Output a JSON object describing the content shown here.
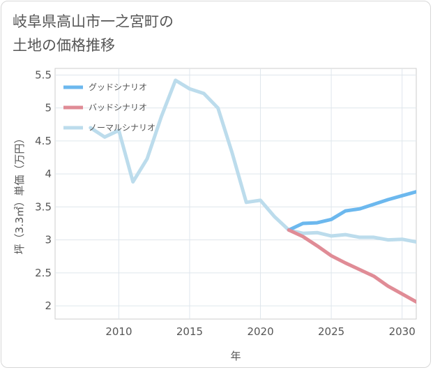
{
  "title": "岐阜県高山市一之宮町の\n土地の価格推移",
  "chart_data": {
    "type": "line",
    "title": "岐阜県高山市一之宮町の土地の価格推移",
    "xlabel": "年",
    "ylabel": "坪（3.3㎡）単価（万円）",
    "xlim": [
      2005.5,
      2031
    ],
    "ylim": [
      1.8,
      5.6
    ],
    "xticks": [
      2010,
      2015,
      2020,
      2025,
      2030
    ],
    "yticks": [
      2,
      2.5,
      3,
      3.5,
      4,
      4.5,
      5,
      5.5
    ],
    "ytick_labels": [
      "2",
      "2.5",
      "3",
      "3.5",
      "4",
      "4.5",
      "5",
      "5.5"
    ],
    "grid": true,
    "legend_position": "top-left",
    "series": [
      {
        "name": "グッドシナリオ",
        "color": "#6cb8ee",
        "x": [
          2022,
          2023,
          2024,
          2025,
          2026,
          2027,
          2028,
          2029,
          2030,
          2031
        ],
        "y": [
          3.15,
          3.25,
          3.26,
          3.31,
          3.44,
          3.47,
          3.54,
          3.61,
          3.67,
          3.73
        ]
      },
      {
        "name": "バッドシナリオ",
        "color": "#e08c96",
        "x": [
          2022,
          2023,
          2024,
          2025,
          2026,
          2027,
          2028,
          2029,
          2030,
          2031
        ],
        "y": [
          3.15,
          3.05,
          2.91,
          2.76,
          2.65,
          2.55,
          2.45,
          2.3,
          2.18,
          2.06
        ]
      },
      {
        "name": "ノーマルシナリオ",
        "color": "#bcdcec",
        "x": [
          2008,
          2009,
          2010,
          2011,
          2012,
          2013,
          2014,
          2015,
          2016,
          2017,
          2018,
          2019,
          2020,
          2021,
          2022,
          2023,
          2024,
          2025,
          2026,
          2027,
          2028,
          2029,
          2030,
          2031
        ],
        "y": [
          4.7,
          4.56,
          4.66,
          3.88,
          4.23,
          4.87,
          5.42,
          5.29,
          5.22,
          5.0,
          4.32,
          3.57,
          3.6,
          3.35,
          3.15,
          3.1,
          3.11,
          3.06,
          3.08,
          3.04,
          3.04,
          3.0,
          3.01,
          2.97
        ]
      }
    ]
  }
}
